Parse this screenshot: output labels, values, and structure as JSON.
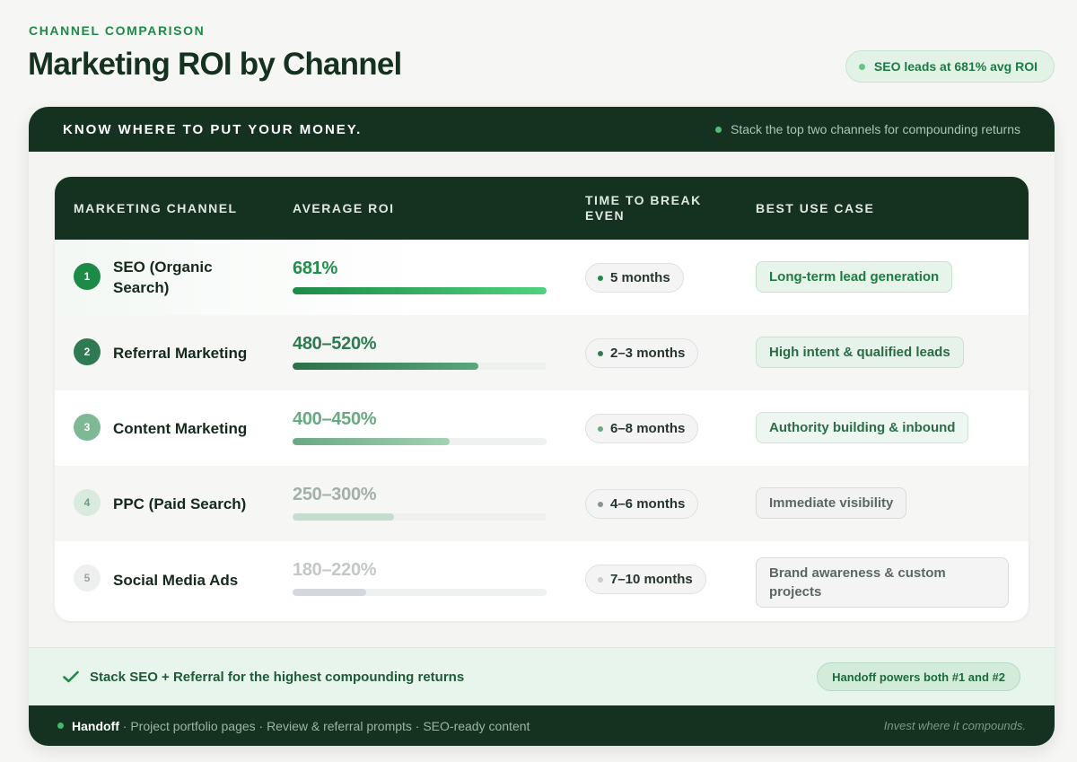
{
  "header": {
    "eyebrow": "CHANNEL COMPARISON",
    "title": "Marketing ROI by Channel",
    "pill": "SEO leads at 681% avg ROI"
  },
  "card": {
    "top_title": "KNOW WHERE TO PUT YOUR MONEY.",
    "top_hint": "Stack the top two channels for compounding returns"
  },
  "table": {
    "headers": {
      "channel": "MARKETING CHANNEL",
      "roi": "AVERAGE ROI",
      "time": "TIME TO BREAK EVEN",
      "use": "BEST USE CASE"
    },
    "rows": [
      {
        "rank": "1",
        "channel": "SEO (Organic Search)",
        "roi": "681%",
        "roi_bar_fraction": 1.0,
        "time": "5 months",
        "use": "Long-term lead generation",
        "colors": {
          "rank_bg": "#1e8a47",
          "rank_fg": "#ffffff",
          "roi": "#1f8f4a",
          "bar_from": "#1e8a47",
          "bar_to": "#4fd27d",
          "time_dot": "#1e8a47",
          "use_bg": "#e6f4ea",
          "use_border": "#c4e3cc",
          "use_fg": "#1f7a43"
        }
      },
      {
        "rank": "2",
        "channel": "Referral Marketing",
        "roi": "480–520%",
        "roi_bar_fraction": 0.73,
        "time": "2–3 months",
        "use": "High intent & qualified leads",
        "colors": {
          "rank_bg": "#2f7a52",
          "rank_fg": "#ffffff",
          "roi": "#2f7a52",
          "bar_from": "#2c7048",
          "bar_to": "#5aa77c",
          "time_dot": "#2f7a52",
          "use_bg": "#e6f2ea",
          "use_border": "#c9e1d0",
          "use_fg": "#2a6b46"
        }
      },
      {
        "rank": "3",
        "channel": "Content Marketing",
        "roi": "400–450%",
        "roi_bar_fraction": 0.62,
        "time": "6–8 months",
        "use": "Authority building & inbound",
        "colors": {
          "rank_bg": "#7eb894",
          "rank_fg": "#ffffff",
          "roi": "#6aa883",
          "bar_from": "#6aa883",
          "bar_to": "#a3d2b3",
          "time_dot": "#6aa883",
          "use_bg": "#edf6f0",
          "use_border": "#cfe6d6",
          "use_fg": "#2c6c47"
        }
      },
      {
        "rank": "4",
        "channel": "PPC (Paid Search)",
        "roi": "250–300%",
        "roi_bar_fraction": 0.4,
        "time": "4–6 months",
        "use": "Immediate visibility",
        "colors": {
          "rank_bg": "#d9ebdf",
          "rank_fg": "#6d9a7e",
          "roi": "#a3b0a8",
          "bar_from": "#c5ddcd",
          "bar_to": "#c5ddcd",
          "time_dot": "#8a948e",
          "use_bg": "#f1f2f1",
          "use_border": "#d9dcda",
          "use_fg": "#5d6761"
        }
      },
      {
        "rank": "5",
        "channel": "Social Media Ads",
        "roi": "180–220%",
        "roi_bar_fraction": 0.29,
        "time": "7–10 months",
        "use": "Brand awareness & custom projects",
        "colors": {
          "rank_bg": "#eef0ef",
          "rank_fg": "#9aa39d",
          "roi": "#c3c8c5",
          "bar_from": "#d4d8dc",
          "bar_to": "#d4d8dc",
          "time_dot": "#c9cecb",
          "use_bg": "#f3f4f3",
          "use_border": "#d9dcda",
          "use_fg": "#5d6761"
        }
      }
    ]
  },
  "summary": {
    "text": "Stack SEO + Referral for the highest compounding returns",
    "pill": "Handoff powers both #1 and #2"
  },
  "footer": {
    "brand": "Handoff",
    "items": " · Project portfolio pages · Review & referral prompts · SEO-ready content",
    "tagline": "Invest where it compounds."
  }
}
